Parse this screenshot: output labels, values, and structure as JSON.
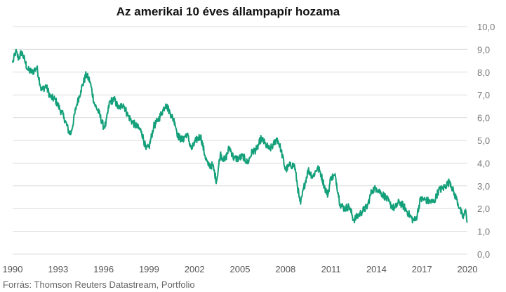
{
  "chart_data": {
    "type": "line",
    "title": "Az amerikai 10 éves állampapír hozama",
    "xlabel": "",
    "ylabel": "",
    "source": "Forrás: Thomson Reuters Datastream, Portfolio",
    "xlim": [
      1990,
      2020
    ],
    "ylim": [
      0,
      10
    ],
    "x_ticks": [
      "1990",
      "1993",
      "1996",
      "1999",
      "2002",
      "2005",
      "2008",
      "2011",
      "2014",
      "2017",
      "2020"
    ],
    "y_ticks": [
      "0,0",
      "1,0",
      "2,0",
      "3,0",
      "4,0",
      "5,0",
      "6,0",
      "7,0",
      "8,0",
      "9,0",
      "10,0"
    ],
    "grid": true,
    "line_color": "#14a07a",
    "series": [
      {
        "x": [
          1990.0,
          1990.2,
          1990.4,
          1990.6,
          1990.8,
          1991.0,
          1991.3,
          1991.6,
          1991.9,
          1992.2,
          1992.5,
          1992.8,
          1993.1,
          1993.4,
          1993.7,
          1993.85,
          1994.2,
          1994.5,
          1994.85,
          1995.1,
          1995.4,
          1995.7,
          1996.0,
          1996.15,
          1996.4,
          1996.7,
          1997.0,
          1997.3,
          1997.6,
          1997.9,
          1998.2,
          1998.5,
          1998.8,
          1999.0,
          1999.3,
          1999.6,
          1999.9,
          2000.1,
          2000.4,
          2000.7,
          2000.9,
          2001.2,
          2001.5,
          2001.8,
          2002.1,
          2002.4,
          2002.7,
          2002.9,
          2003.2,
          2003.45,
          2003.7,
          2004.0,
          2004.3,
          2004.6,
          2004.9,
          2005.2,
          2005.5,
          2005.8,
          2006.1,
          2006.4,
          2006.7,
          2006.95,
          2007.2,
          2007.45,
          2007.7,
          2008.0,
          2008.3,
          2008.6,
          2008.9,
          2009.0,
          2009.2,
          2009.5,
          2009.8,
          2010.1,
          2010.3,
          2010.6,
          2010.8,
          2011.0,
          2011.3,
          2011.6,
          2011.9,
          2012.2,
          2012.5,
          2012.8,
          2013.1,
          2013.4,
          2013.7,
          2014.0,
          2014.3,
          2014.6,
          2014.9,
          2015.2,
          2015.5,
          2015.8,
          2016.1,
          2016.4,
          2016.6,
          2016.9,
          2017.2,
          2017.5,
          2017.8,
          2018.1,
          2018.4,
          2018.7,
          2018.85,
          2019.1,
          2019.3,
          2019.5,
          2019.7,
          2019.9,
          2020.0
        ],
        "y": [
          8.4,
          8.9,
          8.6,
          8.9,
          8.5,
          8.1,
          8.0,
          8.2,
          7.2,
          7.4,
          6.9,
          6.8,
          6.4,
          6.0,
          5.4,
          5.3,
          6.5,
          7.2,
          7.9,
          7.6,
          6.6,
          6.2,
          5.6,
          5.7,
          6.7,
          6.8,
          6.4,
          6.6,
          6.1,
          5.8,
          5.6,
          5.4,
          4.6,
          4.7,
          5.6,
          5.9,
          6.3,
          6.6,
          6.2,
          5.8,
          5.2,
          5.0,
          5.3,
          4.6,
          5.0,
          5.2,
          4.3,
          3.9,
          3.9,
          3.2,
          4.4,
          4.1,
          4.7,
          4.2,
          4.2,
          4.3,
          4.0,
          4.5,
          4.6,
          5.1,
          4.8,
          4.6,
          4.8,
          5.1,
          4.6,
          3.7,
          3.9,
          3.9,
          2.5,
          2.2,
          2.9,
          3.7,
          3.4,
          3.8,
          3.6,
          2.9,
          2.6,
          3.4,
          3.4,
          2.2,
          2.0,
          2.1,
          1.5,
          1.7,
          1.9,
          2.1,
          2.8,
          2.9,
          2.7,
          2.5,
          2.2,
          2.0,
          2.3,
          2.1,
          1.8,
          1.5,
          1.5,
          2.4,
          2.4,
          2.3,
          2.3,
          2.8,
          2.9,
          3.1,
          3.2,
          2.7,
          2.4,
          2.0,
          1.6,
          1.9,
          1.4
        ]
      }
    ]
  }
}
